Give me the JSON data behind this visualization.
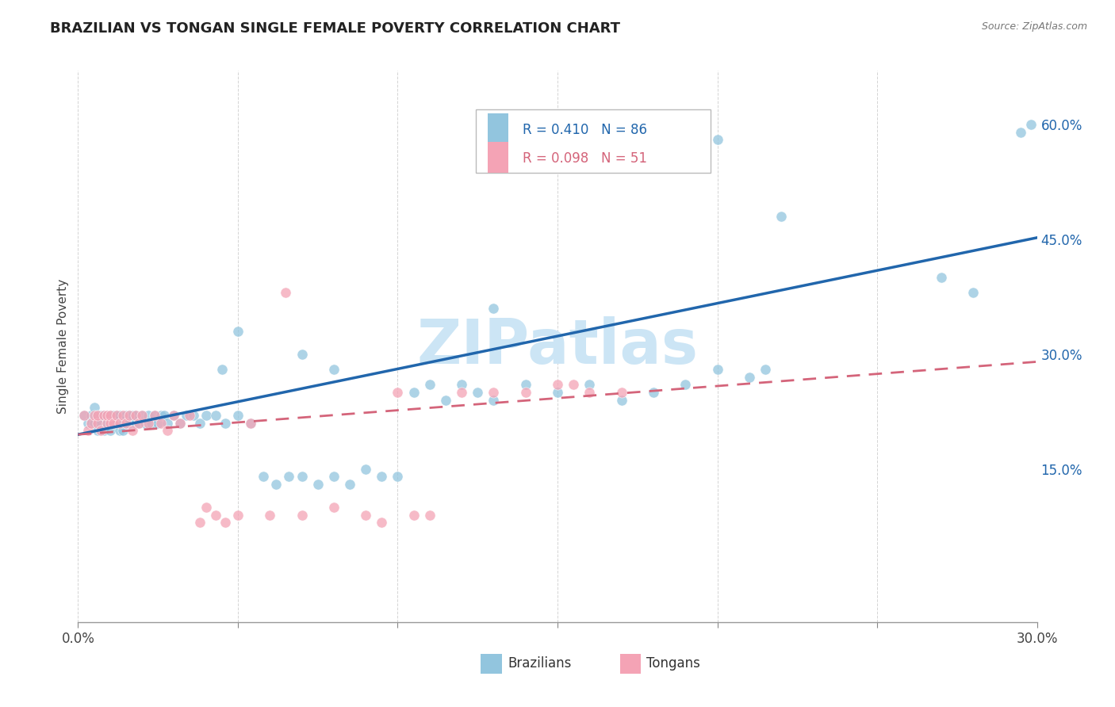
{
  "title": "BRAZILIAN VS TONGAN SINGLE FEMALE POVERTY CORRELATION CHART",
  "source": "Source: ZipAtlas.com",
  "ylabel": "Single Female Poverty",
  "right_yticks": [
    "60.0%",
    "45.0%",
    "30.0%",
    "15.0%"
  ],
  "right_ytick_vals": [
    0.6,
    0.45,
    0.3,
    0.15
  ],
  "legend_line1": "R = 0.410   N = 86",
  "legend_line2": "R = 0.098   N = 51",
  "legend_label_blue": "Brazilians",
  "legend_label_pink": "Tongans",
  "blue_color": "#92c5de",
  "pink_color": "#f4a3b5",
  "trendline_blue": "#2166ac",
  "trendline_pink": "#d4647a",
  "watermark": "ZIPatlas",
  "watermark_color": "#cce5f5",
  "x_range": [
    0.0,
    0.3
  ],
  "y_range": [
    -0.05,
    0.67
  ],
  "brazil_scatter": {
    "x": [
      0.002,
      0.003,
      0.004,
      0.004,
      0.005,
      0.005,
      0.006,
      0.006,
      0.007,
      0.007,
      0.008,
      0.008,
      0.009,
      0.009,
      0.01,
      0.01,
      0.011,
      0.011,
      0.012,
      0.012,
      0.013,
      0.013,
      0.014,
      0.015,
      0.015,
      0.016,
      0.016,
      0.017,
      0.018,
      0.018,
      0.019,
      0.02,
      0.021,
      0.022,
      0.023,
      0.024,
      0.025,
      0.026,
      0.027,
      0.028,
      0.03,
      0.032,
      0.034,
      0.036,
      0.038,
      0.04,
      0.043,
      0.046,
      0.05,
      0.054,
      0.058,
      0.062,
      0.066,
      0.07,
      0.075,
      0.08,
      0.085,
      0.09,
      0.095,
      0.1,
      0.105,
      0.11,
      0.115,
      0.12,
      0.125,
      0.13,
      0.14,
      0.15,
      0.16,
      0.17,
      0.18,
      0.19,
      0.2,
      0.21,
      0.215,
      0.13,
      0.045,
      0.07,
      0.08,
      0.05,
      0.27,
      0.28,
      0.22,
      0.2,
      0.295,
      0.298
    ],
    "y": [
      0.22,
      0.21,
      0.21,
      0.22,
      0.21,
      0.23,
      0.22,
      0.2,
      0.22,
      0.21,
      0.22,
      0.2,
      0.22,
      0.21,
      0.2,
      0.22,
      0.21,
      0.22,
      0.21,
      0.22,
      0.2,
      0.22,
      0.2,
      0.21,
      0.22,
      0.21,
      0.22,
      0.22,
      0.21,
      0.22,
      0.21,
      0.22,
      0.21,
      0.22,
      0.21,
      0.22,
      0.21,
      0.22,
      0.22,
      0.21,
      0.22,
      0.21,
      0.22,
      0.22,
      0.21,
      0.22,
      0.22,
      0.21,
      0.22,
      0.21,
      0.14,
      0.13,
      0.14,
      0.14,
      0.13,
      0.14,
      0.13,
      0.15,
      0.14,
      0.14,
      0.25,
      0.26,
      0.24,
      0.26,
      0.25,
      0.24,
      0.26,
      0.25,
      0.26,
      0.24,
      0.25,
      0.26,
      0.28,
      0.27,
      0.28,
      0.36,
      0.28,
      0.3,
      0.28,
      0.33,
      0.4,
      0.38,
      0.48,
      0.58,
      0.59,
      0.6
    ]
  },
  "tonga_scatter": {
    "x": [
      0.002,
      0.003,
      0.004,
      0.005,
      0.006,
      0.006,
      0.007,
      0.008,
      0.009,
      0.009,
      0.01,
      0.01,
      0.011,
      0.012,
      0.013,
      0.014,
      0.015,
      0.016,
      0.017,
      0.018,
      0.019,
      0.02,
      0.022,
      0.024,
      0.026,
      0.028,
      0.03,
      0.032,
      0.035,
      0.038,
      0.04,
      0.043,
      0.046,
      0.05,
      0.054,
      0.06,
      0.065,
      0.07,
      0.08,
      0.09,
      0.095,
      0.1,
      0.105,
      0.11,
      0.12,
      0.13,
      0.14,
      0.15,
      0.155,
      0.16,
      0.17
    ],
    "y": [
      0.22,
      0.2,
      0.21,
      0.22,
      0.21,
      0.22,
      0.2,
      0.22,
      0.21,
      0.22,
      0.21,
      0.22,
      0.21,
      0.22,
      0.21,
      0.22,
      0.21,
      0.22,
      0.2,
      0.22,
      0.21,
      0.22,
      0.21,
      0.22,
      0.21,
      0.2,
      0.22,
      0.21,
      0.22,
      0.08,
      0.1,
      0.09,
      0.08,
      0.09,
      0.21,
      0.09,
      0.38,
      0.09,
      0.1,
      0.09,
      0.08,
      0.25,
      0.09,
      0.09,
      0.25,
      0.25,
      0.25,
      0.26,
      0.26,
      0.25,
      0.25
    ]
  },
  "trendline_brazil_pts": [
    [
      0.0,
      0.195
    ],
    [
      0.3,
      0.452
    ]
  ],
  "trendline_tonga_pts": [
    [
      0.0,
      0.195
    ],
    [
      0.3,
      0.29
    ]
  ]
}
